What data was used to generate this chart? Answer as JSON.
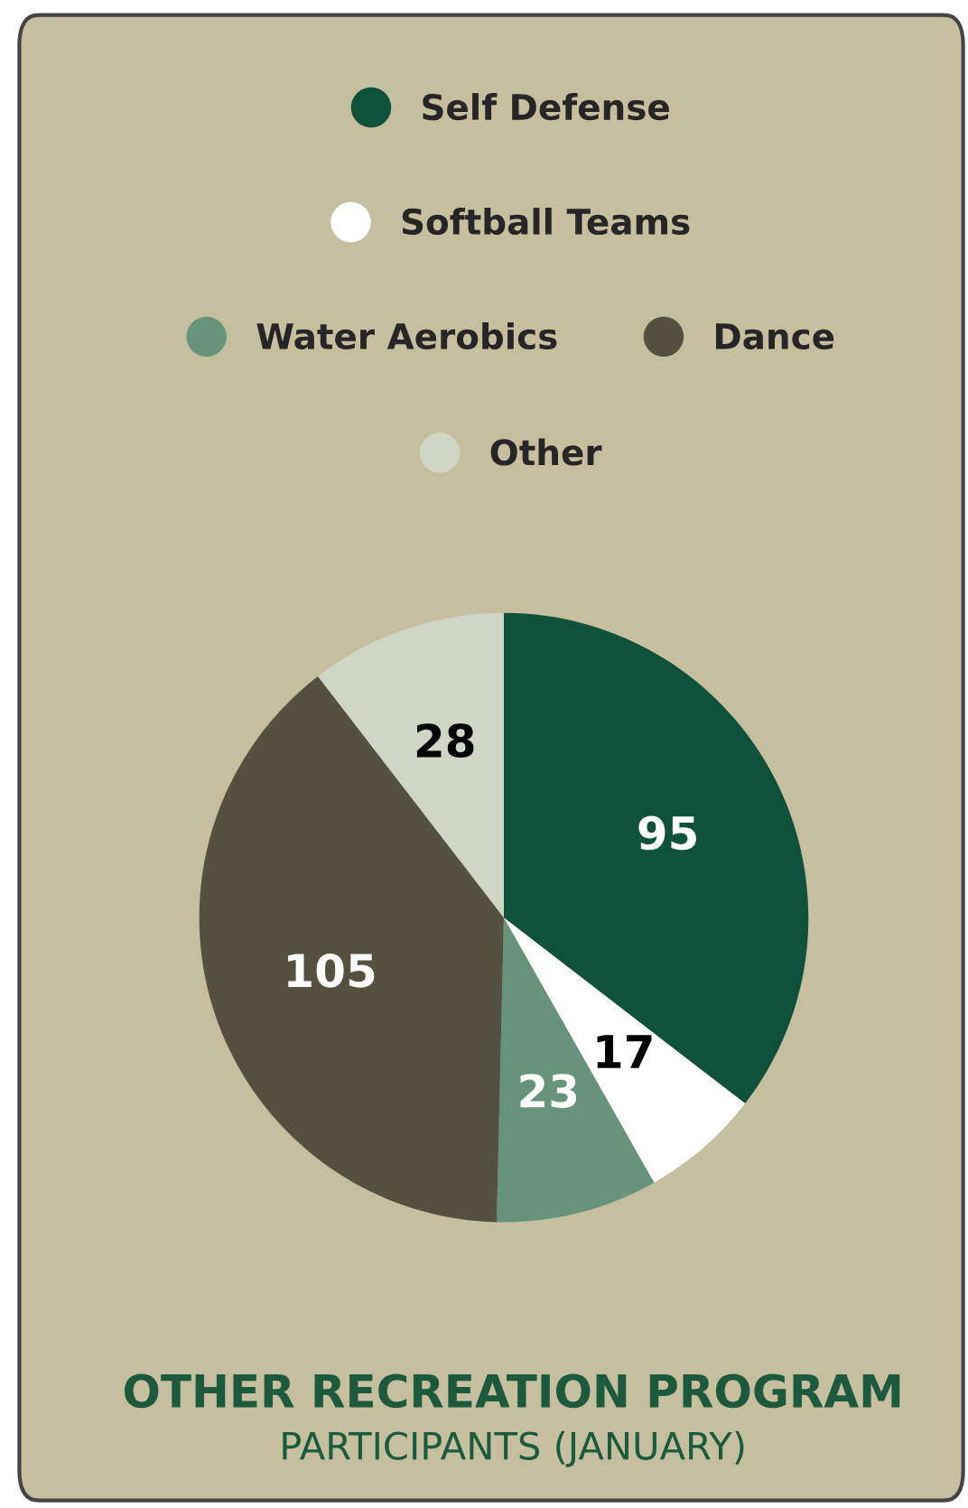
{
  "chart_data": {
    "type": "pie",
    "title": "OTHER RECREATION PROGRAM",
    "subtitle": "PARTICIPANTS (JANUARY)",
    "categories": [
      "Self Defense",
      "Softball Teams",
      "Water Aerobics",
      "Dance",
      "Other"
    ],
    "values": [
      95,
      17,
      23,
      105,
      28
    ],
    "colors": [
      "#10513b",
      "#ffffff",
      "#66937a",
      "#555140",
      "#d0d6c6"
    ],
    "data_labels": true,
    "legend": "top"
  }
}
